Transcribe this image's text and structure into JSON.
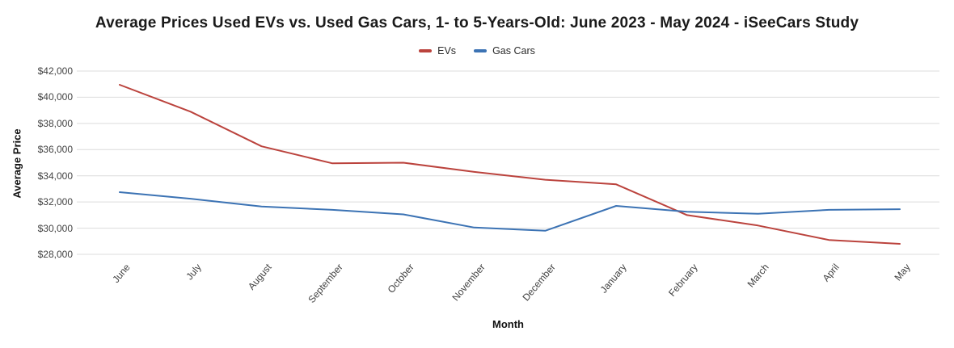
{
  "chart_data": {
    "type": "line",
    "title": "Average Prices Used EVs vs. Used Gas Cars, 1- to 5-Years-Old: June 2023 - May 2024 - iSeeCars Study",
    "xlabel": "Month",
    "ylabel": "Average Price",
    "categories": [
      "June",
      "July",
      "August",
      "September",
      "October",
      "November",
      "December",
      "January",
      "February",
      "March",
      "April",
      "May"
    ],
    "series": [
      {
        "name": "EVs",
        "color": "#bb433d",
        "values": [
          40950,
          38900,
          36250,
          34950,
          35000,
          34300,
          33700,
          33350,
          31000,
          30200,
          29100,
          28800
        ]
      },
      {
        "name": "Gas Cars",
        "color": "#3c73b4",
        "values": [
          32750,
          32250,
          31650,
          31400,
          31050,
          30050,
          29800,
          31700,
          31250,
          31100,
          31400,
          31450
        ]
      }
    ],
    "ylim": [
      28000,
      42000
    ],
    "y_ticks": [
      {
        "label": "$42,000",
        "value": 42000
      },
      {
        "label": "$40,000",
        "value": 40000
      },
      {
        "label": "$38,000",
        "value": 38000
      },
      {
        "label": "$36,000",
        "value": 36000
      },
      {
        "label": "$34,000",
        "value": 34000
      },
      {
        "label": "$32,000",
        "value": 32000
      },
      {
        "label": "$30,000",
        "value": 30000
      },
      {
        "label": "$28,000",
        "value": 28000
      }
    ],
    "grid": "horizontal",
    "legend_position": "top"
  }
}
